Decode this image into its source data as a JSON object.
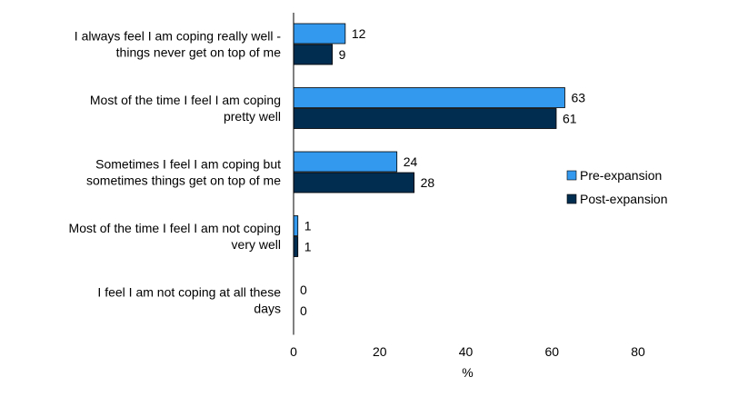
{
  "chart_data": {
    "type": "bar",
    "orientation": "horizontal",
    "categories": [
      [
        "I always feel I am coping really well -",
        "things never get on top of me"
      ],
      [
        "Most of the time I feel I am coping",
        "pretty well"
      ],
      [
        "Sometimes I feel I am coping but",
        "sometimes things get on top of me"
      ],
      [
        "Most of the time I feel I am not coping",
        "very well"
      ],
      [
        "I feel I am not coping at all these",
        "days"
      ]
    ],
    "series": [
      {
        "name": "Pre-expansion",
        "values": [
          12,
          63,
          24,
          1,
          0
        ],
        "color": "#3399ee"
      },
      {
        "name": "Post-expansion",
        "values": [
          9,
          61,
          28,
          1,
          0
        ],
        "color": "#002d50"
      }
    ],
    "xlabel": "%",
    "xlim": [
      0,
      80
    ],
    "xticks": [
      "0",
      "20",
      "40",
      "60",
      "80"
    ],
    "grid": false,
    "legend_position": "right"
  }
}
